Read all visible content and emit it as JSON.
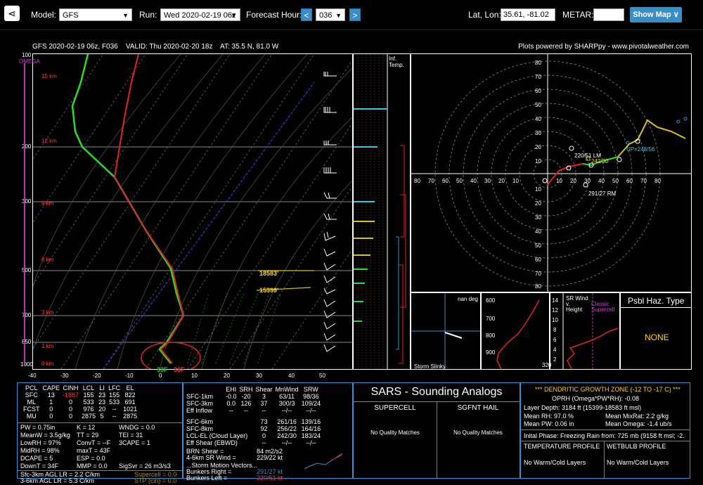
{
  "toolbar": {
    "model_label": "Model:",
    "model_value": "GFS",
    "run_label": "Run:",
    "run_value": "Wed 2020-02-19 06z",
    "forecast_label": "Forecast Hour:",
    "forecast_prev": "<",
    "forecast_value": "036",
    "forecast_next": ">",
    "latlon_label": "Lat, Lon:",
    "latlon_value": "35.61, -81.02",
    "metar_label": "METAR:",
    "metar_value": "",
    "show_map": "Show Map ∨"
  },
  "header": {
    "run_info": "GFS 2020-02-19 06z, F036",
    "valid": "VALID: Thu 2020-02-20 18z",
    "at": "AT: 35.5 N, 81.0 W",
    "credit": "Plots powered by SHARPpy - www.pivotalweather.com"
  },
  "skewt": {
    "omega_label": "OMEGA",
    "pressure_labels": [
      "100",
      "200",
      "300",
      "500",
      "700",
      "850",
      "1000"
    ],
    "height_labels": [
      "15 km",
      "12 km",
      "9 km",
      "6 km",
      "3 km",
      "1 km",
      "0 km"
    ],
    "temp_ticks": [
      "-40",
      "-30",
      "-20",
      "-10",
      "0",
      "10",
      "20",
      "30",
      "40",
      "50"
    ],
    "dgz_top": "18583'",
    "dgz_bottom": "15399'",
    "sfc_temp": "36F",
    "sfc_dew": "33F"
  },
  "inferred_label": "Inf.\nTemp.",
  "hodograph": {
    "rings": [
      "80",
      "70",
      "60",
      "50",
      "40",
      "30",
      "20",
      "10",
      "10",
      "20",
      "30",
      "40",
      "50",
      "60",
      "70",
      "80"
    ],
    "lm_label": "220/51 LM",
    "mean_label": "242/30",
    "up_label": "UP=248/56",
    "rm_label": "291/27 RM"
  },
  "storm_slinky": {
    "title": "Storm Slinky",
    "nan": "nan deg",
    "levels": [
      "600",
      "700",
      "800",
      "900"
    ]
  },
  "srwind": {
    "title": "SR Wind\nv.\nHeight",
    "classic": "Classic\nSupercell",
    "ticks": [
      "14",
      "12",
      "10",
      "8",
      "6",
      "4",
      "2"
    ],
    "bottom": "320"
  },
  "haz": {
    "title": "Psbl Haz. Type",
    "value": "NONE"
  },
  "parcels": {
    "headers": [
      "PCL",
      "CAPE",
      "CINH",
      "LCL",
      "LI",
      "LFC",
      "EL"
    ],
    "rows": [
      [
        "SFC",
        "13",
        "-1887",
        "155",
        "23",
        "155",
        "822"
      ],
      [
        "ML",
        "1",
        "0",
        "533",
        "23",
        "533",
        "691"
      ],
      [
        "FCST",
        "0",
        "0",
        "976",
        "20",
        "--",
        "1021"
      ],
      [
        "MU",
        "0",
        "0",
        "2875",
        "5",
        "--",
        "2875"
      ]
    ]
  },
  "indices": {
    "lines": [
      [
        "PW = 0.75in",
        "K = 12",
        "WNDG = 0.0"
      ],
      [
        "MeanW = 3.5g/kg",
        "TT = 29",
        "TEI = 31"
      ],
      [
        "LowRH = 97%",
        "ConvT = --F",
        "3CAPE = 1"
      ],
      [
        "MidRH = 98%",
        "maxT = 43F",
        ""
      ],
      [
        "DCAPE = 5",
        "ESP = 0.0",
        ""
      ],
      [
        "DownT = 34F",
        "MMP = 0.0",
        "SigSvr = 26 m3/s3"
      ]
    ],
    "lr1": "Sfc-3km AGL LR = 2.2 C/km",
    "lr2": "3-6km AGL LR = 5.3 C/km",
    "supercell": "Supercell = 0.0",
    "stp": "STP (cin) = 0.0"
  },
  "kinematics": {
    "headers": [
      "",
      "EHI",
      "SRH",
      "Shear",
      "MnWind",
      "SRW"
    ],
    "rows": [
      [
        "SFC-1km",
        "-0.0",
        "-20",
        "3",
        "63/11",
        "98/36"
      ],
      [
        "SFC-3km",
        "0.0",
        "126",
        "37",
        "300/3",
        "109/24"
      ],
      [
        "Eff Inflow",
        "--",
        "--",
        "--",
        "--/--",
        "--/--"
      ],
      [
        "",
        "",
        "",
        "",
        "",
        ""
      ],
      [
        "SFC-6km",
        "",
        "",
        "73",
        "261/16",
        "139/16"
      ],
      [
        "SFC-8km",
        "",
        "",
        "92",
        "256/22",
        "164/16"
      ],
      [
        "LCL-EL (Cloud Layer)",
        "",
        "",
        "0",
        "242/30",
        "183/24"
      ],
      [
        "Eff Shear (EBWD)",
        "",
        "",
        "--",
        "--/--",
        "--/--"
      ]
    ],
    "brn_label": "BRN Shear =",
    "brn_value": "84 m2/s2",
    "sr_label": "4-6km SR Wind =",
    "sr_value": "229/22 kt",
    "motion_title": "...Storm Motion Vectors...",
    "bunkers_right_label": "Bunkers Right =",
    "bunkers_right_value": "291/27 kt",
    "bunkers_left_label": "Bunkers Left =",
    "bunkers_left_value": "220/51 kt"
  },
  "sars": {
    "title": "SARS - Sounding Analogs",
    "supercell": "SUPERCELL",
    "sgfnt": "SGFNT HAIL",
    "sc_msg": "No Quality Matches",
    "hail_msg": "No Quality Matches"
  },
  "dgz": {
    "title": "*** DENDRITIC GROWTH ZONE (-12 TO -17 C) ***",
    "oprh": "OPRH (Omega*PW*RH): -0.08",
    "depth": "Layer Depth: 3184 ft (15399-18583 ft msl)",
    "mean_rh": "Mean RH: 97.0 %",
    "mean_mixrat": "Mean MixRat: 2.2 g/kg",
    "mean_pw": "Mean PW: 0.06 in",
    "mean_omega": "Mean Omega: -1.4 ub/s",
    "initial_phase": "Inital Phase: Freezing Rain from: 725 mb (9158 ft msl; -2.",
    "temp_profile": "TEMPERATURE PROFILE",
    "wetbulb_profile": "WETBULB PROFILE",
    "temp_msg": "No Warm/Cold Layers",
    "wetbulb_msg": "No Warm/Cold Layers"
  }
}
